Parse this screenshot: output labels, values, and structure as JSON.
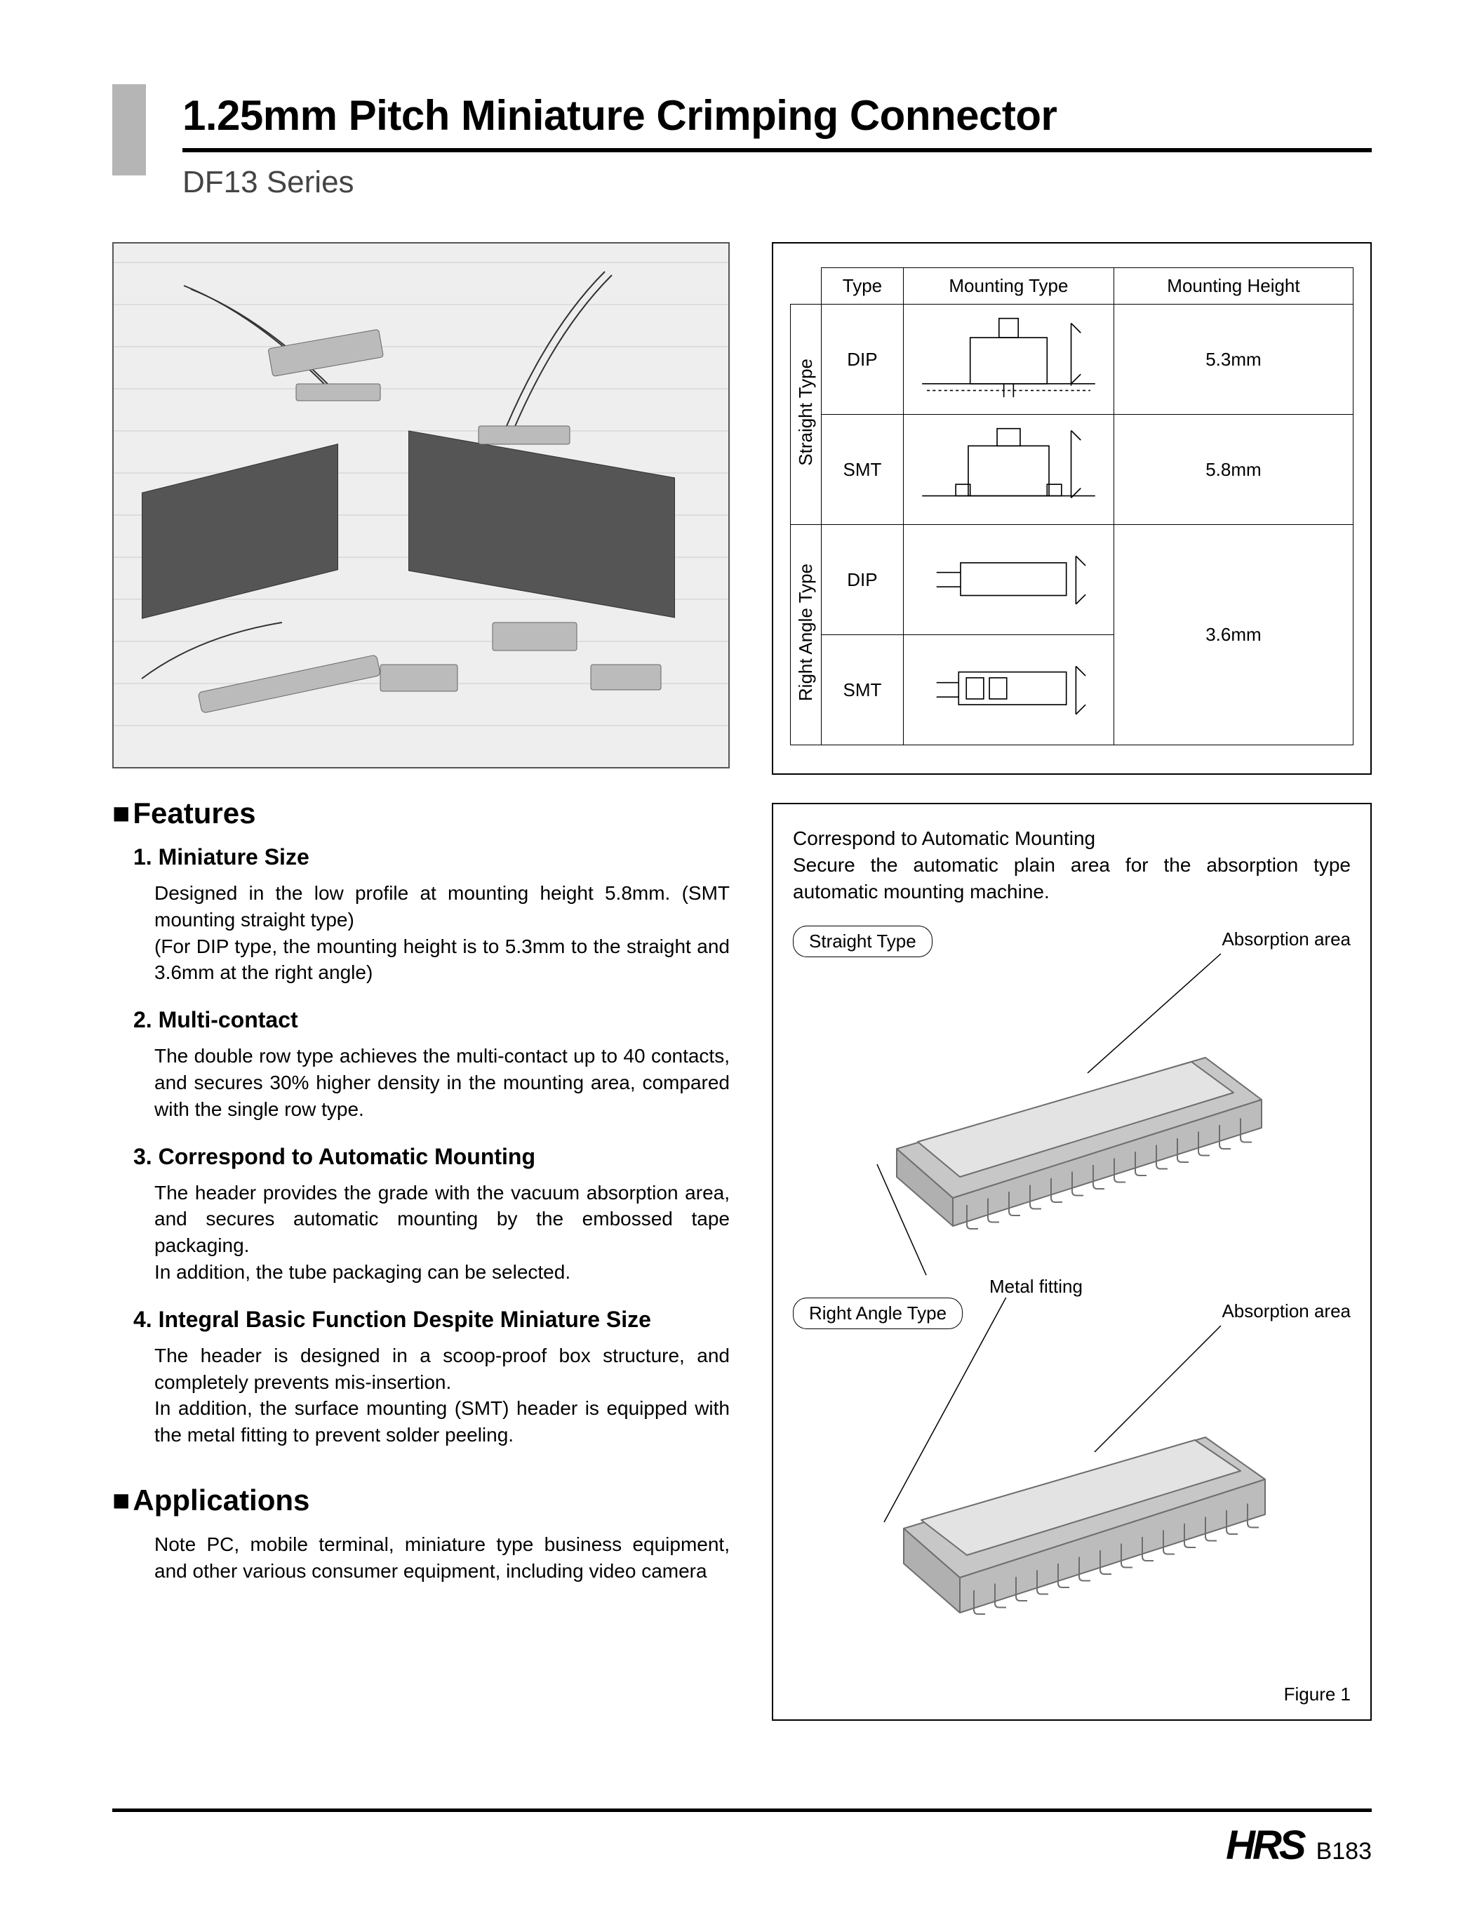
{
  "header": {
    "title": "1.25mm Pitch Miniature Crimping Connector",
    "series": "DF13 Series"
  },
  "spec_table": {
    "col_headers": [
      "Type",
      "Mounting Type",
      "Mounting Height"
    ],
    "groups": [
      {
        "label": "Straight Type",
        "rows": [
          {
            "type": "DIP",
            "height": "5.3mm"
          },
          {
            "type": "SMT",
            "height": "5.8mm"
          }
        ]
      },
      {
        "label": "Right Angle Type",
        "rows": [
          {
            "type": "DIP",
            "height_merged": "3.6mm"
          },
          {
            "type": "SMT"
          }
        ]
      }
    ]
  },
  "features": {
    "heading": "Features",
    "items": [
      {
        "n": "1",
        "title": "Miniature Size",
        "body": "Designed in the low profile at mounting height 5.8mm. (SMT mounting straight type)\n(For DIP type, the mounting height is to 5.3mm to the straight and 3.6mm at the right angle)"
      },
      {
        "n": "2",
        "title": "Multi-contact",
        "body": "The double row type achieves the multi-contact up to 40 contacts, and secures 30% higher density in the mounting area, compared with the single row type."
      },
      {
        "n": "3",
        "title": "Correspond to Automatic Mounting",
        "body": "The header provides the grade with the vacuum absorption area, and secures automatic mounting by the embossed tape packaging.\nIn addition, the tube packaging can be selected."
      },
      {
        "n": "4",
        "title": "Integral Basic Function Despite Miniature Size",
        "body": "The header is designed in a scoop-proof box structure, and completely prevents mis-insertion.\nIn addition, the surface mounting (SMT) header is equipped with the metal fitting to prevent solder peeling."
      }
    ]
  },
  "applications": {
    "heading": "Applications",
    "body": "Note PC, mobile terminal, miniature type business equipment, and other various consumer equipment, including video camera"
  },
  "mounting_panel": {
    "title": "Correspond to Automatic Mounting",
    "subtitle": "Secure the automatic plain area for the absorption type automatic mounting machine.",
    "type1": {
      "pill": "Straight Type",
      "label_abs": "Absorption area",
      "label_mf": "Metal fitting"
    },
    "type2": {
      "pill": "Right Angle Type",
      "label_abs": "Absorption area"
    },
    "figure_label": "Figure 1"
  },
  "footer": {
    "logo": "HRS",
    "page": "B183"
  },
  "colors": {
    "connector_body": "#c7c7c7",
    "connector_edge": "#6e6e6e",
    "pin": "#888888",
    "photo_board": "#555555"
  }
}
